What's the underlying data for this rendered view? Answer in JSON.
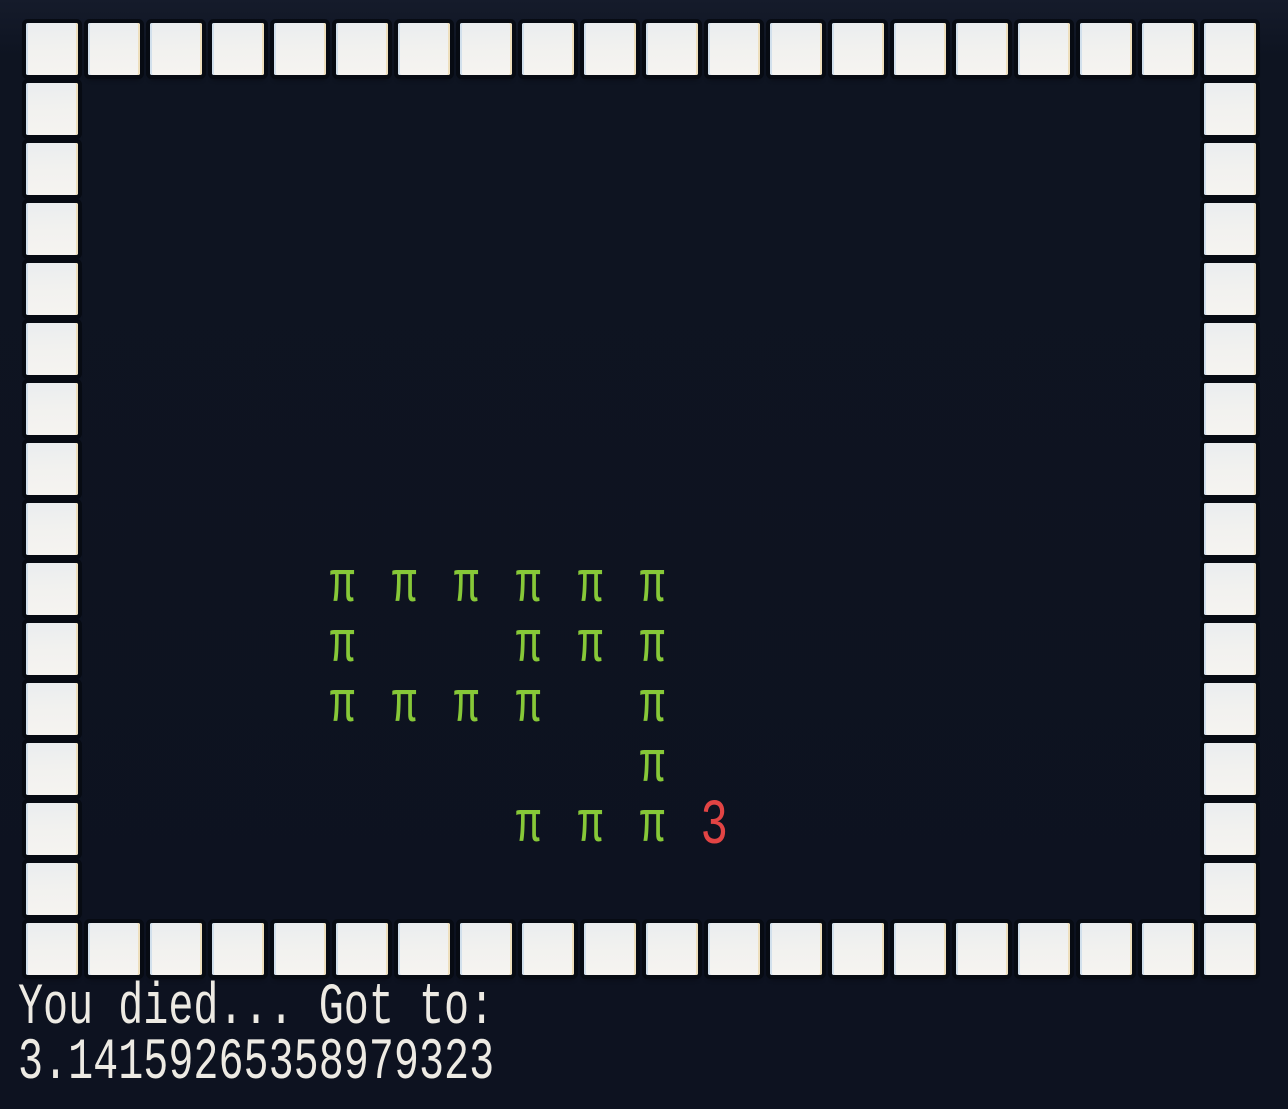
{
  "colors": {
    "background": "#0e1421",
    "wall_fill": "#f1f1ef",
    "wall_edge_left": "#d2e0ec",
    "wall_edge_right": "#eedfbd",
    "wall_outline": "#070b13",
    "snake": "#87c838",
    "food": "#e24444",
    "status_text": "#edeae3"
  },
  "board": {
    "cols": 20,
    "rows": 16,
    "wall_rows": [
      0,
      15
    ],
    "wall_cols": [
      0,
      19
    ]
  },
  "snake": {
    "glyph": "π",
    "segments": [
      [
        5,
        9
      ],
      [
        6,
        9
      ],
      [
        7,
        9
      ],
      [
        8,
        9
      ],
      [
        9,
        9
      ],
      [
        10,
        9
      ],
      [
        5,
        10
      ],
      [
        8,
        10
      ],
      [
        9,
        10
      ],
      [
        10,
        10
      ],
      [
        5,
        11
      ],
      [
        6,
        11
      ],
      [
        7,
        11
      ],
      [
        8,
        11
      ],
      [
        10,
        11
      ],
      [
        10,
        12
      ],
      [
        8,
        13
      ],
      [
        9,
        13
      ],
      [
        10,
        13
      ]
    ]
  },
  "food": {
    "glyph": "3",
    "cell": [
      11,
      13
    ]
  },
  "status": {
    "line1": "You died... Got to:",
    "line2": "3.14159265358979323"
  }
}
